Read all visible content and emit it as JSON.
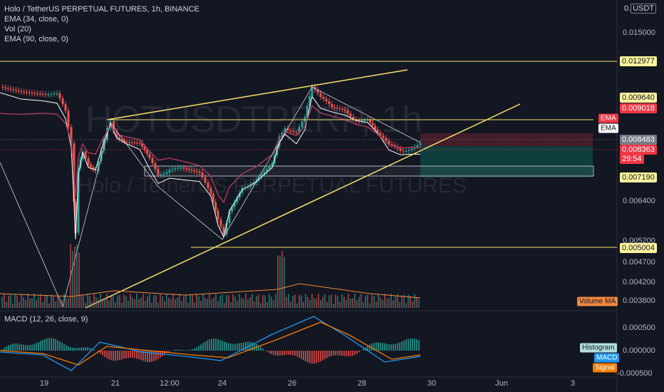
{
  "legend": {
    "title": "Holo / TetherUS PERPETUAL FUTURES, 1h, BINANCE",
    "indicators": [
      "EMA (34, close, 0)",
      "Vol (20)",
      "EMA (90, close, 0)"
    ]
  },
  "watermark": {
    "symbol": "HOTUSDTPERP, 1h",
    "name": "Holo / TetherUS PERPETUAL FUTURES"
  },
  "currency": "USDT",
  "price_axis": [
    "0.015000",
    "0.006400",
    "0.005200",
    "0.004700",
    "0.004200",
    "0.003800"
  ],
  "price_badges": [
    {
      "text": "0.012977",
      "bg": "#fff59d",
      "fg": "#131722"
    },
    {
      "text": "0.009640",
      "bg": "#fff59d",
      "fg": "#131722"
    },
    {
      "text": "0.009018",
      "bg": "#f23645",
      "fg": "#ffffff"
    },
    {
      "text": "0.008483",
      "bg": "#787b86",
      "fg": "#ffffff"
    },
    {
      "text": "0.008363",
      "bg": "#f23645",
      "fg": "#ffffff"
    },
    {
      "text": "29:54",
      "bg": "#f23645",
      "fg": "#ffffff"
    },
    {
      "text": "0.007190",
      "bg": "#fff59d",
      "fg": "#131722"
    },
    {
      "text": "0.005004",
      "bg": "#fff59d",
      "fg": "#131722"
    }
  ],
  "side_tags": {
    "ema1": "EMA",
    "ema2": "EMA",
    "volume_ma": "Volume MA"
  },
  "macd": {
    "legend": "MACD (12, 26, close, 9)",
    "axis": [
      "0.000500",
      "0.000000",
      "-0.000500"
    ],
    "tags": {
      "histogram": "Histogram",
      "macd": "MACD",
      "signal": "Signal"
    }
  },
  "time_axis": [
    "19",
    "21",
    "12:00",
    "24",
    "26",
    "28",
    "30",
    "Jun",
    "3"
  ],
  "colors": {
    "up": "#26a69a",
    "down": "#ef5350",
    "yellow": "#f7e36b",
    "ema34": "#ffffff",
    "ema90": "#a03a5a"
  }
}
